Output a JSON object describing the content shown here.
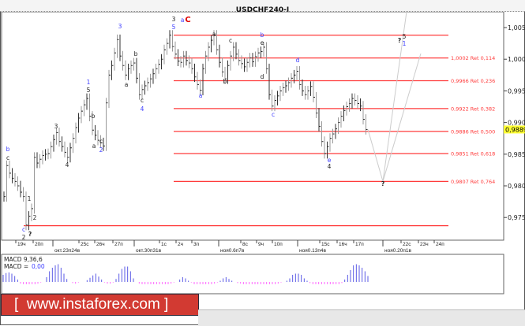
{
  "window": {
    "title": "USDCHF240-I"
  },
  "logo": {
    "text": "[  www.instaforex.com ]"
  },
  "colors": {
    "fib_line": "#ff3b3b",
    "macd_positive": "#5a5ae6",
    "macd_negative": "#ff66ff",
    "price_box": "#ffff33",
    "wave_blue": "#3c3cff",
    "wave_red": "#e00000",
    "wave_dark": "#222222"
  },
  "chart_data": {
    "type": "ohlc-bar",
    "symbol": "USDCHF240-I",
    "ylim": [
      0.9735,
      1.0065
    ],
    "y_ticks": [
      "1,0050",
      "1,0000",
      "0,9950",
      "0,9900",
      "0,9850",
      "0,9800",
      "0,9750"
    ],
    "y_tick_values": [
      1.005,
      1.0,
      0.995,
      0.99,
      0.985,
      0.98,
      0.975
    ],
    "x_ticks": [
      "19ч",
      "20п",
      "окт.23п24в",
      "25с",
      "26ч",
      "27п",
      "окт.30п31в",
      "1с",
      "2ч",
      "3п",
      "ноя0.6п7в",
      "8с",
      "9ч",
      "10п",
      "ноя0.13п4в",
      "15с",
      "16ч",
      "17п",
      "ноя0.20п1в",
      "22с",
      "23ч",
      "24п"
    ],
    "current_price": "0,9889",
    "current_price_value": 0.9889,
    "closes": [
      0.9783,
      0.9832,
      0.982,
      0.9812,
      0.9807,
      0.98,
      0.979,
      0.9783,
      0.9738,
      0.9752,
      0.9764,
      0.9845,
      0.9836,
      0.9842,
      0.9848,
      0.985,
      0.9851,
      0.9862,
      0.9873,
      0.9884,
      0.987,
      0.9862,
      0.9853,
      0.9845,
      0.986,
      0.9875,
      0.9892,
      0.9907,
      0.9918,
      0.9928,
      0.9938,
      0.991,
      0.9888,
      0.988,
      0.9872,
      0.9868,
      0.9863,
      0.9931,
      0.9975,
      0.999,
      1.001,
      1.0031,
      1.0005,
      0.999,
      0.9975,
      0.9985,
      0.999,
      0.9994,
      0.997,
      0.9944,
      0.9952,
      0.9958,
      0.9963,
      0.9969,
      0.9977,
      0.9985,
      0.9992,
      1.0,
      1.0015,
      1.0025,
      1.0038,
      1.002,
      1.0008,
      0.9997,
      0.9995,
      1.0005,
      0.9998,
      0.9994,
      0.9985,
      0.9972,
      0.996,
      0.9951,
      0.9985,
      1.0005,
      1.0019,
      1.003,
      1.0038,
      1.0015,
      0.9995,
      0.998,
      0.9969,
      0.999,
      1.0005,
      1.0019,
      1.0008,
      0.9998,
      0.9993,
      0.9988,
      0.9995,
      1.0002,
      0.9996,
      1.0004,
      1.001,
      1.0012,
      1.0019,
      0.9985,
      0.9944,
      0.9926,
      0.9935,
      0.9942,
      0.995,
      0.9955,
      0.9958,
      0.9963,
      0.997,
      0.9975,
      0.9981,
      0.996,
      0.995,
      0.9944,
      0.995,
      0.9957,
      0.994,
      0.9915,
      0.9894,
      0.987,
      0.9851,
      0.9862,
      0.9875,
      0.9882,
      0.989,
      0.99,
      0.991,
      0.9919,
      0.9925,
      0.993,
      0.9938,
      0.9935,
      0.993,
      0.9926,
      0.9905,
      0.9889
    ],
    "horizontal_levels": [
      {
        "price": 1.0038,
        "label": ""
      },
      {
        "price": 1.0002,
        "label": "1,0002 Ret 0,114"
      },
      {
        "price": 0.9966,
        "label": "0,9966 Ret 0,236"
      },
      {
        "price": 0.9922,
        "label": "0,9922 Ret 0,382"
      },
      {
        "price": 0.9886,
        "label": "0,9886 Ret 0,500"
      },
      {
        "price": 0.9851,
        "label": "0,9851 Ret 0,618"
      },
      {
        "price": 0.9807,
        "label": "0,9807 Ret 0,764"
      },
      {
        "price": 0.9737,
        "label": ""
      }
    ],
    "projection": [
      {
        "from": 0.9889,
        "to": 0.9807,
        "then_to": 1.0065
      },
      {
        "from": 0.9807,
        "to": 1.0003
      }
    ],
    "wave_labels": [
      {
        "text": "3",
        "color": "blue"
      },
      {
        "text": "1",
        "color": "blue"
      },
      {
        "text": "5",
        "color": "dark"
      },
      {
        "text": "b",
        "color": "dark"
      },
      {
        "text": "b",
        "color": "dark"
      },
      {
        "text": "a",
        "color": "dark"
      },
      {
        "text": "c",
        "color": "dark"
      },
      {
        "text": "4",
        "color": "blue"
      },
      {
        "text": "3",
        "color": "dark"
      },
      {
        "text": "5",
        "color": "blue"
      },
      {
        "text": "a",
        "color": "blue"
      },
      {
        "text": "C",
        "color": "red"
      },
      {
        "text": "a",
        "color": "dark"
      },
      {
        "text": "c",
        "color": "dark"
      },
      {
        "text": "a",
        "color": "blue"
      },
      {
        "text": "b",
        "color": "dark"
      },
      {
        "text": "b",
        "color": "blue"
      },
      {
        "text": "e",
        "color": "dark"
      },
      {
        "text": "d",
        "color": "dark"
      },
      {
        "text": "c",
        "color": "blue"
      },
      {
        "text": "d",
        "color": "blue"
      },
      {
        "text": "b",
        "color": "blue"
      },
      {
        "text": "c",
        "color": "dark"
      },
      {
        "text": "3",
        "color": "dark"
      },
      {
        "text": "4",
        "color": "dark"
      },
      {
        "text": "1",
        "color": "dark"
      },
      {
        "text": "2",
        "color": "dark"
      },
      {
        "text": "a",
        "color": "dark"
      },
      {
        "text": "c",
        "color": "dark"
      },
      {
        "text": "2",
        "color": "blue"
      },
      {
        "text": "c",
        "color": "blue"
      },
      {
        "text": "2",
        "color": "dark"
      },
      {
        "text": "?",
        "color": "dark"
      },
      {
        "text": "e",
        "color": "blue"
      },
      {
        "text": "4",
        "color": "dark"
      },
      {
        "text": "?",
        "color": "dark"
      },
      {
        "text": "?",
        "color": "dark"
      },
      {
        "text": "5",
        "color": "dark"
      },
      {
        "text": "1",
        "color": "blue"
      }
    ],
    "macd": {
      "label": "MACD 9,36,6",
      "value_label": "MACD =",
      "value": "0,00",
      "histogram": [
        12,
        15,
        16,
        14,
        10,
        4,
        -3,
        -4,
        -4,
        -4,
        -4,
        -4,
        -3,
        -1,
        0,
        8,
        18,
        24,
        28,
        30,
        24,
        14,
        5,
        0,
        -2,
        -3,
        -1,
        0,
        0,
        3,
        7,
        11,
        14,
        9,
        4,
        -1,
        -3,
        -3,
        -1,
        5,
        14,
        22,
        26,
        26,
        18,
        6,
        0,
        -3,
        -4,
        -4,
        -4,
        -4,
        -4,
        -4,
        -4,
        -4,
        -4,
        -4,
        -3,
        -1,
        0,
        4,
        8,
        6,
        2,
        -1,
        -4,
        -4,
        -4,
        -4,
        -4,
        -4,
        -4,
        -3,
        -1,
        2,
        6,
        8,
        5,
        2,
        0,
        -2,
        -3,
        -4,
        -4,
        -4,
        -4,
        -4,
        -4,
        -4,
        -4,
        -4,
        -4,
        -4,
        -4,
        -3,
        -1,
        0,
        2,
        6,
        12,
        14,
        14,
        12,
        6,
        2,
        -2,
        -4,
        -4,
        -4,
        -4,
        -4,
        -4,
        -4,
        -4,
        -4,
        -4,
        -2,
        4,
        12,
        20,
        28,
        30,
        28,
        24,
        18,
        10
      ]
    }
  }
}
